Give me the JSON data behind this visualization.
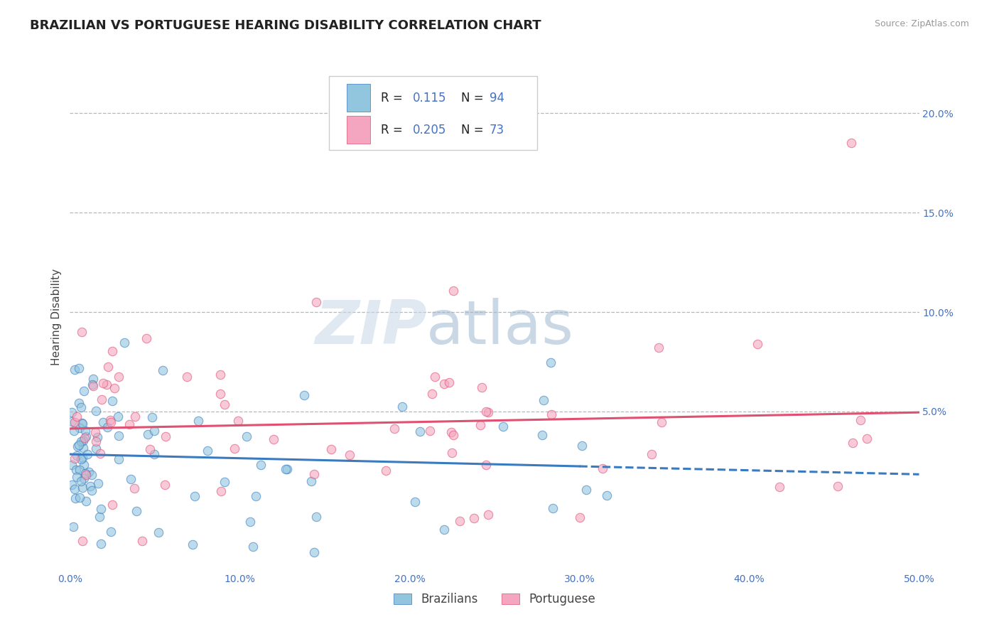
{
  "title": "BRAZILIAN VS PORTUGUESE HEARING DISABILITY CORRELATION CHART",
  "source": "Source: ZipAtlas.com",
  "ylabel": "Hearing Disability",
  "xlim": [
    0.0,
    0.5
  ],
  "ylim": [
    -0.03,
    0.225
  ],
  "brazil_R": 0.115,
  "brazil_N": 94,
  "port_R": 0.205,
  "port_N": 73,
  "brazil_color": "#92c5de",
  "port_color": "#f4a6c0",
  "brazil_line_color": "#3a7bbf",
  "port_line_color": "#e05070",
  "legend_label1": "Brazilians",
  "legend_label2": "Portuguese",
  "watermark_zip": "ZIP",
  "watermark_atlas": "atlas",
  "background_color": "#ffffff",
  "grid_color": "#b0b8c8",
  "title_color": "#222222",
  "tick_color": "#4472c4",
  "legend_text_color": "#222222",
  "legend_value_color": "#4472c4"
}
